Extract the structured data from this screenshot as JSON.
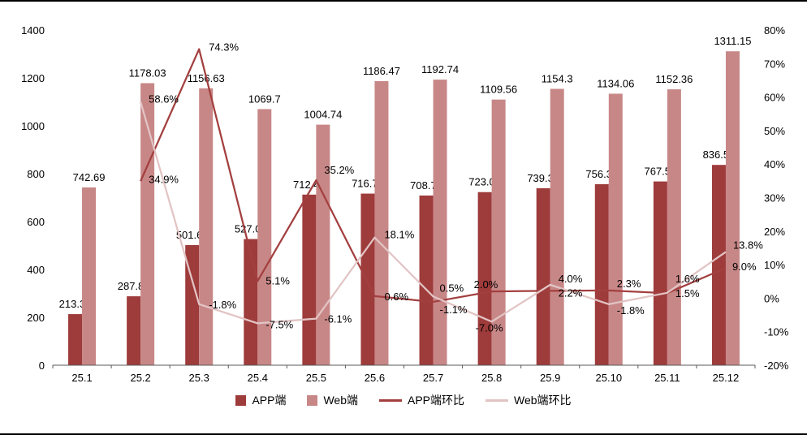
{
  "chart_data": {
    "type": "combo: bar + line",
    "title": "",
    "categories": [
      "25.1",
      "25.2",
      "25.3",
      "25.4",
      "25.5",
      "25.6",
      "25.7",
      "25.8",
      "25.9",
      "25.10",
      "25.11",
      "25.12"
    ],
    "bar_series": [
      {
        "name": "APP端",
        "color": "#9E3B3B",
        "axis": "left",
        "values": [
          213.36,
          287.85,
          501.62,
          527.05,
          712.48,
          716.74,
          708.79,
          723.07,
          739.31,
          756.34,
          767.51,
          836.59
        ]
      },
      {
        "name": "Web端",
        "color": "#C88787",
        "axis": "left",
        "values": [
          742.69,
          1178.03,
          1156.63,
          1069.7,
          1004.74,
          1186.47,
          1192.74,
          1109.56,
          1154.3,
          1134.06,
          1152.36,
          1311.15
        ]
      }
    ],
    "line_series": [
      {
        "name": "APP端环比",
        "color": "#A33F3F",
        "axis": "right",
        "values_pct": [
          null,
          34.9,
          74.3,
          5.1,
          35.2,
          0.6,
          -1.1,
          2.0,
          2.2,
          2.3,
          1.5,
          9.0
        ]
      },
      {
        "name": "Web端环比",
        "color": "#E2C4C4",
        "axis": "right",
        "values_pct": [
          null,
          58.6,
          -1.8,
          -7.5,
          -6.1,
          18.1,
          0.5,
          -7.0,
          4.0,
          -1.8,
          1.6,
          13.8
        ]
      }
    ],
    "left_axis": {
      "min": 0,
      "max": 1400,
      "step": 200
    },
    "right_axis": {
      "min": -20,
      "max": 80,
      "step": 10,
      "format": "percent"
    },
    "legend": {
      "position": "bottom",
      "items": [
        "APP端",
        "Web端",
        "APP端环比",
        "Web端环比"
      ]
    },
    "grid": false,
    "data_labels": true
  },
  "style_colors": {
    "axis_line": "#595959",
    "text": "#000000",
    "frame_border": "#000000"
  }
}
